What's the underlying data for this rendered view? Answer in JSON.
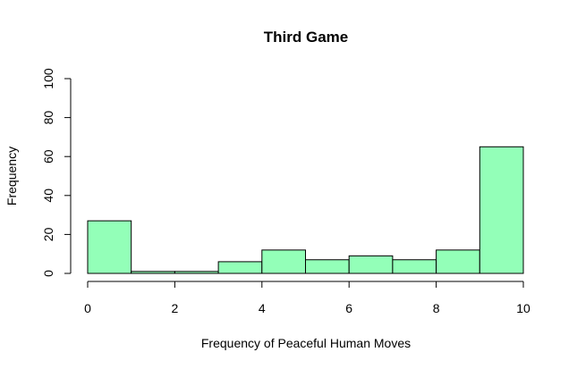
{
  "chart_data": {
    "type": "bar",
    "title": "Third Game",
    "xlabel": "Frequency of Peaceful Human Moves",
    "ylabel": "Frequency",
    "bin_edges": [
      0,
      1,
      2,
      3,
      4,
      5,
      6,
      7,
      8,
      9,
      10
    ],
    "values": [
      27,
      1,
      1,
      6,
      12,
      7,
      9,
      7,
      12,
      65
    ],
    "xlim": [
      0,
      10
    ],
    "ylim": [
      0,
      100
    ],
    "x_ticks": [
      0,
      2,
      4,
      6,
      8,
      10
    ],
    "y_ticks": [
      0,
      20,
      40,
      60,
      80,
      100
    ],
    "bar_color": "#93FFB8",
    "bar_edge_color": "#000000",
    "grid": false,
    "legend": "none"
  }
}
